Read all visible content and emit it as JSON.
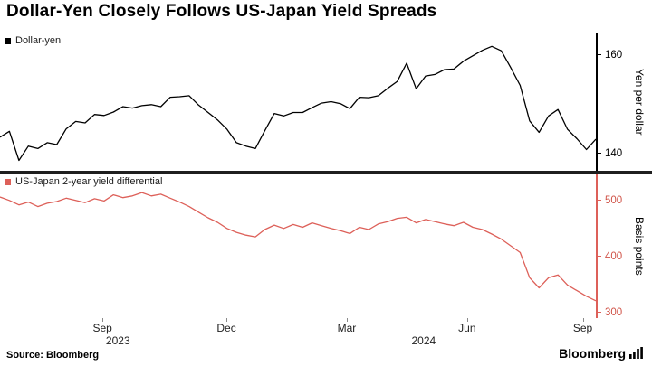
{
  "title": "Dollar-Yen Closely Follows US-Japan Yield Spreads",
  "source_label": "Source: Bloomberg",
  "brand": "Bloomberg",
  "xaxis": {
    "ticks": [
      {
        "label": "Sep",
        "x": 0.172
      },
      {
        "label": "Dec",
        "x": 0.38
      },
      {
        "label": "Mar",
        "x": 0.582
      },
      {
        "label": "Jun",
        "x": 0.784
      },
      {
        "label": "Sep",
        "x": 0.978
      }
    ],
    "years": [
      {
        "label": "2023",
        "x": 0.198
      },
      {
        "label": "2024",
        "x": 0.711
      }
    ]
  },
  "chart_data": [
    {
      "type": "line",
      "series_label": "Dollar-yen",
      "ylabel": "Yen per dollar",
      "color": "#000000",
      "axis_color": "#000000",
      "tick_color": "#000000",
      "yticks": [
        140,
        160
      ],
      "ylim": [
        136.5,
        164.5
      ],
      "legend_position": "top-left",
      "grid": false,
      "values": [
        143.3,
        144.5,
        138.6,
        141.5,
        141.0,
        142.2,
        141.8,
        145.0,
        146.5,
        146.2,
        147.9,
        147.7,
        148.4,
        149.5,
        149.2,
        149.7,
        149.9,
        149.5,
        151.4,
        151.5,
        151.7,
        149.8,
        148.3,
        146.8,
        144.9,
        142.2,
        141.5,
        141.0,
        144.6,
        148.1,
        147.6,
        148.3,
        148.3,
        149.3,
        150.2,
        150.5,
        150.1,
        149.1,
        151.4,
        151.3,
        151.7,
        153.2,
        154.6,
        158.3,
        153.1,
        155.7,
        156.0,
        157.0,
        157.1,
        158.7,
        159.8,
        160.9,
        161.7,
        160.8,
        157.4,
        153.8,
        146.6,
        144.3,
        147.6,
        148.9,
        144.9,
        143.0,
        140.8,
        142.9
      ]
    },
    {
      "type": "line",
      "series_label": "US-Japan 2-year yield differential",
      "ylabel": "Basis points",
      "color": "#dd6059",
      "axis_color": "#dd6059",
      "tick_color": "#d05348",
      "yticks": [
        300,
        400,
        500
      ],
      "ylim": [
        290,
        548
      ],
      "legend_position": "top-left",
      "grid": false,
      "values": [
        506,
        500,
        492,
        497,
        489,
        495,
        498,
        504,
        500,
        496,
        503,
        499,
        510,
        505,
        508,
        514,
        508,
        511,
        504,
        497,
        489,
        479,
        469,
        461,
        450,
        443,
        438,
        435,
        448,
        456,
        450,
        457,
        452,
        460,
        455,
        450,
        446,
        441,
        452,
        448,
        458,
        462,
        468,
        470,
        460,
        466,
        462,
        458,
        455,
        461,
        452,
        448,
        440,
        431,
        419,
        407,
        362,
        344,
        362,
        367,
        349,
        339,
        329,
        321
      ]
    }
  ]
}
